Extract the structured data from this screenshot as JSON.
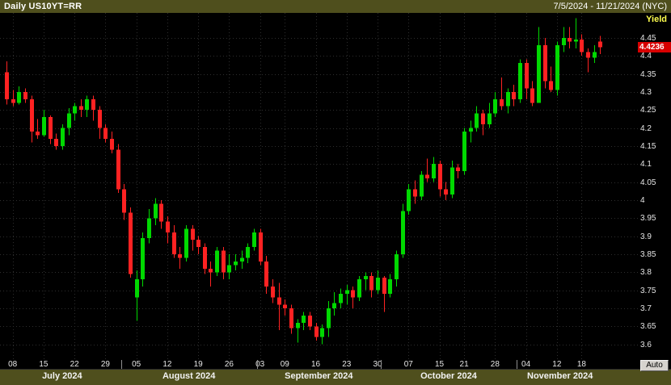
{
  "titlebar": {
    "title": "Daily US10YT=RR",
    "date_range": "7/5/2024 - 11/21/2024 (NYC)"
  },
  "y_axis": {
    "label": "Yield",
    "last_price": "4.4236",
    "last_price_value": 4.4236,
    "ticks": [
      "4.45",
      "4.4",
      "4.35",
      "4.3",
      "4.25",
      "4.2",
      "4.15",
      "4.1",
      "4.05",
      "4",
      "3.95",
      "3.9",
      "3.85",
      "3.8",
      "3.75",
      "3.7",
      "3.65",
      "3.6"
    ]
  },
  "x_axis": {
    "ticks": [
      {
        "label": "08",
        "index": 1
      },
      {
        "label": "15",
        "index": 6
      },
      {
        "label": "22",
        "index": 11
      },
      {
        "label": "29",
        "index": 16
      },
      {
        "label": "05",
        "index": 21
      },
      {
        "label": "12",
        "index": 26
      },
      {
        "label": "19",
        "index": 31
      },
      {
        "label": "26",
        "index": 36
      },
      {
        "label": "03",
        "index": 41
      },
      {
        "label": "09",
        "index": 45
      },
      {
        "label": "16",
        "index": 50
      },
      {
        "label": "23",
        "index": 55
      },
      {
        "label": "30",
        "index": 60
      },
      {
        "label": "07",
        "index": 65
      },
      {
        "label": "15",
        "index": 70
      },
      {
        "label": "21",
        "index": 74
      },
      {
        "label": "28",
        "index": 79
      },
      {
        "label": "04",
        "index": 84
      },
      {
        "label": "12",
        "index": 89
      },
      {
        "label": "18",
        "index": 93
      }
    ],
    "months": [
      {
        "label": "July 2024",
        "from": 0,
        "to": 18
      },
      {
        "label": "August 2024",
        "from": 19,
        "to": 40
      },
      {
        "label": "September 2024",
        "from": 41,
        "to": 60
      },
      {
        "label": "October 2024",
        "from": 61,
        "to": 82
      },
      {
        "label": "November 2024",
        "from": 83,
        "to": 96
      }
    ]
  },
  "controls": {
    "auto_label": "Auto"
  },
  "colors": {
    "band": "#4f4f1d",
    "grid": "#2e2e2e",
    "up": "#00d900",
    "down": "#ff2222",
    "price_box": "#d80000",
    "yield_label": "#ffff4f",
    "background": "#000000"
  },
  "chart_data": {
    "type": "candlestick",
    "title": "Daily US10YT=RR",
    "instrument": "US10YT=RR",
    "interval": "Daily",
    "range_shown": "7/5/2024 - 11/21/2024",
    "ylabel": "Yield",
    "ylim": [
      3.56,
      4.52
    ],
    "y_tick_values": [
      4.45,
      4.4,
      4.35,
      4.3,
      4.25,
      4.2,
      4.15,
      4.1,
      4.05,
      4.0,
      3.95,
      3.9,
      3.85,
      3.8,
      3.75,
      3.7,
      3.65,
      3.6
    ],
    "last": 4.4236,
    "bar_format": [
      "date",
      "open",
      "high",
      "low",
      "close"
    ],
    "bars": [
      [
        "2024-07-05",
        4.355,
        4.385,
        4.265,
        4.28
      ],
      [
        "2024-07-08",
        4.28,
        4.305,
        4.26,
        4.27
      ],
      [
        "2024-07-09",
        4.27,
        4.315,
        4.265,
        4.3
      ],
      [
        "2024-07-10",
        4.3,
        4.31,
        4.27,
        4.28
      ],
      [
        "2024-07-11",
        4.28,
        4.29,
        4.16,
        4.19
      ],
      [
        "2024-07-12",
        4.19,
        4.225,
        4.17,
        4.18
      ],
      [
        "2024-07-15",
        4.18,
        4.25,
        4.175,
        4.23
      ],
      [
        "2024-07-16",
        4.23,
        4.235,
        4.155,
        4.17
      ],
      [
        "2024-07-17",
        4.17,
        4.185,
        4.14,
        4.15
      ],
      [
        "2024-07-18",
        4.15,
        4.21,
        4.14,
        4.2
      ],
      [
        "2024-07-19",
        4.2,
        4.255,
        4.18,
        4.24
      ],
      [
        "2024-07-22",
        4.24,
        4.27,
        4.22,
        4.26
      ],
      [
        "2024-07-23",
        4.26,
        4.28,
        4.23,
        4.25
      ],
      [
        "2024-07-24",
        4.25,
        4.29,
        4.23,
        4.28
      ],
      [
        "2024-07-25",
        4.28,
        4.29,
        4.22,
        4.25
      ],
      [
        "2024-07-26",
        4.25,
        4.26,
        4.17,
        4.2
      ],
      [
        "2024-07-29",
        4.2,
        4.21,
        4.16,
        4.17
      ],
      [
        "2024-07-30",
        4.17,
        4.19,
        4.13,
        4.14
      ],
      [
        "2024-07-31",
        4.14,
        4.155,
        4.02,
        4.03
      ],
      [
        "2024-08-01",
        4.03,
        4.045,
        3.945,
        3.965
      ],
      [
        "2024-08-02",
        3.965,
        3.98,
        3.785,
        3.795
      ],
      [
        "2024-08-05",
        3.73,
        3.805,
        3.665,
        3.78
      ],
      [
        "2024-08-06",
        3.78,
        3.91,
        3.76,
        3.895
      ],
      [
        "2024-08-07",
        3.895,
        3.975,
        3.88,
        3.95
      ],
      [
        "2024-08-08",
        3.95,
        4.005,
        3.93,
        3.99
      ],
      [
        "2024-08-09",
        3.99,
        4.0,
        3.92,
        3.94
      ],
      [
        "2024-08-12",
        3.94,
        3.955,
        3.88,
        3.91
      ],
      [
        "2024-08-13",
        3.91,
        3.93,
        3.84,
        3.85
      ],
      [
        "2024-08-14",
        3.85,
        3.87,
        3.81,
        3.84
      ],
      [
        "2024-08-15",
        3.84,
        3.93,
        3.83,
        3.92
      ],
      [
        "2024-08-16",
        3.92,
        3.93,
        3.86,
        3.89
      ],
      [
        "2024-08-19",
        3.89,
        3.9,
        3.85,
        3.87
      ],
      [
        "2024-08-20",
        3.87,
        3.88,
        3.795,
        3.81
      ],
      [
        "2024-08-21",
        3.81,
        3.83,
        3.76,
        3.8
      ],
      [
        "2024-08-22",
        3.8,
        3.87,
        3.79,
        3.86
      ],
      [
        "2024-08-23",
        3.86,
        3.87,
        3.78,
        3.8
      ],
      [
        "2024-08-26",
        3.8,
        3.85,
        3.78,
        3.82
      ],
      [
        "2024-08-27",
        3.82,
        3.85,
        3.805,
        3.83
      ],
      [
        "2024-08-28",
        3.83,
        3.86,
        3.81,
        3.84
      ],
      [
        "2024-08-29",
        3.84,
        3.88,
        3.825,
        3.87
      ],
      [
        "2024-08-30",
        3.87,
        3.92,
        3.86,
        3.91
      ],
      [
        "2024-09-03",
        3.91,
        3.92,
        3.82,
        3.83
      ],
      [
        "2024-09-04",
        3.83,
        3.845,
        3.74,
        3.76
      ],
      [
        "2024-09-05",
        3.76,
        3.78,
        3.715,
        3.73
      ],
      [
        "2024-09-06",
        3.73,
        3.77,
        3.64,
        3.71
      ],
      [
        "2024-09-09",
        3.71,
        3.725,
        3.68,
        3.7
      ],
      [
        "2024-09-10",
        3.7,
        3.71,
        3.63,
        3.645
      ],
      [
        "2024-09-11",
        3.645,
        3.67,
        3.605,
        3.66
      ],
      [
        "2024-09-12",
        3.66,
        3.69,
        3.64,
        3.68
      ],
      [
        "2024-09-13",
        3.68,
        3.69,
        3.64,
        3.65
      ],
      [
        "2024-09-16",
        3.65,
        3.66,
        3.61,
        3.62
      ],
      [
        "2024-09-17",
        3.62,
        3.655,
        3.6,
        3.645
      ],
      [
        "2024-09-18",
        3.645,
        3.72,
        3.62,
        3.7
      ],
      [
        "2024-09-19",
        3.7,
        3.745,
        3.68,
        3.715
      ],
      [
        "2024-09-20",
        3.715,
        3.755,
        3.7,
        3.74
      ],
      [
        "2024-09-23",
        3.74,
        3.765,
        3.71,
        3.75
      ],
      [
        "2024-09-24",
        3.75,
        3.76,
        3.7,
        3.73
      ],
      [
        "2024-09-25",
        3.73,
        3.79,
        3.72,
        3.78
      ],
      [
        "2024-09-26",
        3.78,
        3.8,
        3.75,
        3.79
      ],
      [
        "2024-09-27",
        3.79,
        3.8,
        3.73,
        3.75
      ],
      [
        "2024-09-30",
        3.75,
        3.805,
        3.74,
        3.785
      ],
      [
        "2024-10-01",
        3.785,
        3.79,
        3.69,
        3.74
      ],
      [
        "2024-10-02",
        3.74,
        3.795,
        3.73,
        3.78
      ],
      [
        "2024-10-03",
        3.78,
        3.86,
        3.76,
        3.85
      ],
      [
        "2024-10-04",
        3.85,
        3.99,
        3.84,
        3.97
      ],
      [
        "2024-10-07",
        3.97,
        4.045,
        3.96,
        4.03
      ],
      [
        "2024-10-08",
        4.03,
        4.055,
        3.99,
        4.01
      ],
      [
        "2024-10-09",
        4.01,
        4.08,
        4.0,
        4.07
      ],
      [
        "2024-10-10",
        4.07,
        4.115,
        4.05,
        4.06
      ],
      [
        "2024-10-11",
        4.06,
        4.12,
        4.05,
        4.1
      ],
      [
        "2024-10-15",
        4.1,
        4.11,
        4.01,
        4.03
      ],
      [
        "2024-10-16",
        4.03,
        4.05,
        4.0,
        4.015
      ],
      [
        "2024-10-17",
        4.015,
        4.11,
        4.005,
        4.09
      ],
      [
        "2024-10-18",
        4.09,
        4.1,
        4.06,
        4.08
      ],
      [
        "2024-10-21",
        4.08,
        4.2,
        4.07,
        4.19
      ],
      [
        "2024-10-22",
        4.19,
        4.22,
        4.16,
        4.2
      ],
      [
        "2024-10-23",
        4.2,
        4.26,
        4.19,
        4.24
      ],
      [
        "2024-10-24",
        4.24,
        4.25,
        4.18,
        4.21
      ],
      [
        "2024-10-25",
        4.21,
        4.27,
        4.2,
        4.24
      ],
      [
        "2024-10-28",
        4.24,
        4.3,
        4.23,
        4.28
      ],
      [
        "2024-10-29",
        4.28,
        4.34,
        4.25,
        4.26
      ],
      [
        "2024-10-30",
        4.26,
        4.31,
        4.24,
        4.3
      ],
      [
        "2024-10-31",
        4.3,
        4.32,
        4.26,
        4.28
      ],
      [
        "2024-11-01",
        4.28,
        4.39,
        4.27,
        4.38
      ],
      [
        "2024-11-04",
        4.38,
        4.39,
        4.28,
        4.31
      ],
      [
        "2024-11-05",
        4.31,
        4.33,
        4.26,
        4.27
      ],
      [
        "2024-11-06",
        4.27,
        4.48,
        4.27,
        4.43
      ],
      [
        "2024-11-07",
        4.43,
        4.45,
        4.31,
        4.33
      ],
      [
        "2024-11-08",
        4.33,
        4.37,
        4.3,
        4.305
      ],
      [
        "2024-11-12",
        4.305,
        4.44,
        4.29,
        4.43
      ],
      [
        "2024-11-13",
        4.43,
        4.48,
        4.41,
        4.45
      ],
      [
        "2024-11-14",
        4.45,
        4.48,
        4.42,
        4.44
      ],
      [
        "2024-11-15",
        4.44,
        4.505,
        4.42,
        4.445
      ],
      [
        "2024-11-18",
        4.445,
        4.46,
        4.4,
        4.41
      ],
      [
        "2024-11-19",
        4.41,
        4.42,
        4.355,
        4.395
      ],
      [
        "2024-11-20",
        4.395,
        4.43,
        4.38,
        4.41
      ],
      [
        "2024-11-21",
        4.44,
        4.455,
        4.405,
        4.4236
      ]
    ]
  }
}
